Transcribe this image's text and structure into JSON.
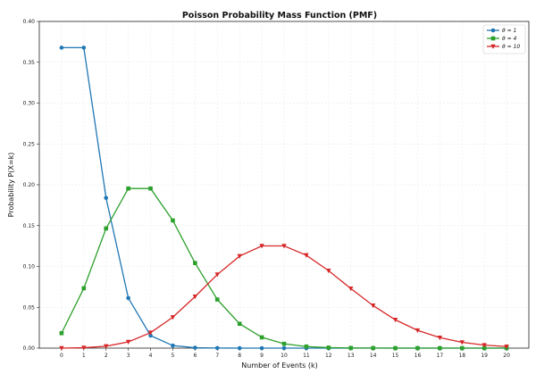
{
  "chart_data": {
    "type": "line",
    "title": "Poisson Probability Mass Function (PMF)",
    "xlabel": "Number of Events (k)",
    "ylabel": "Probability P(X=k)",
    "x": [
      0,
      1,
      2,
      3,
      4,
      5,
      6,
      7,
      8,
      9,
      10,
      11,
      12,
      13,
      14,
      15,
      16,
      17,
      18,
      19,
      20
    ],
    "xticks": [
      "0",
      "1",
      "2",
      "3",
      "4",
      "5",
      "6",
      "7",
      "8",
      "9",
      "10",
      "11",
      "12",
      "13",
      "14",
      "15",
      "16",
      "17",
      "18",
      "19",
      "20"
    ],
    "yticks": [
      "0.00",
      "0.05",
      "0.10",
      "0.15",
      "0.20",
      "0.25",
      "0.30",
      "0.35",
      "0.40"
    ],
    "xlim": [
      -1,
      21
    ],
    "ylim": [
      0,
      0.4
    ],
    "grid": true,
    "legend_position": "top-right",
    "series": [
      {
        "name": "θ = 1",
        "color": "#1f77b4",
        "marker": "circle",
        "values": [
          0.3679,
          0.3679,
          0.1839,
          0.0613,
          0.0153,
          0.0031,
          0.0005,
          0.0001,
          0.0,
          0.0,
          0.0,
          0.0,
          0.0,
          0.0,
          0.0,
          0.0,
          0.0,
          0.0,
          0.0,
          0.0,
          0.0
        ]
      },
      {
        "name": "θ = 4",
        "color": "#2ca02c",
        "marker": "square",
        "values": [
          0.0183,
          0.0733,
          0.1465,
          0.1954,
          0.1954,
          0.1563,
          0.1042,
          0.0595,
          0.0298,
          0.0132,
          0.0053,
          0.0019,
          0.0006,
          0.0002,
          0.0001,
          0.0,
          0.0,
          0.0,
          0.0,
          0.0,
          0.0
        ]
      },
      {
        "name": "θ = 10",
        "color": "#d62728",
        "marker": "triangle-down",
        "values": [
          0.0,
          0.0005,
          0.0023,
          0.0076,
          0.0189,
          0.0378,
          0.0631,
          0.0901,
          0.1126,
          0.1251,
          0.1251,
          0.1137,
          0.0948,
          0.0729,
          0.0521,
          0.0347,
          0.0217,
          0.0128,
          0.0071,
          0.0037,
          0.0019
        ]
      }
    ]
  }
}
